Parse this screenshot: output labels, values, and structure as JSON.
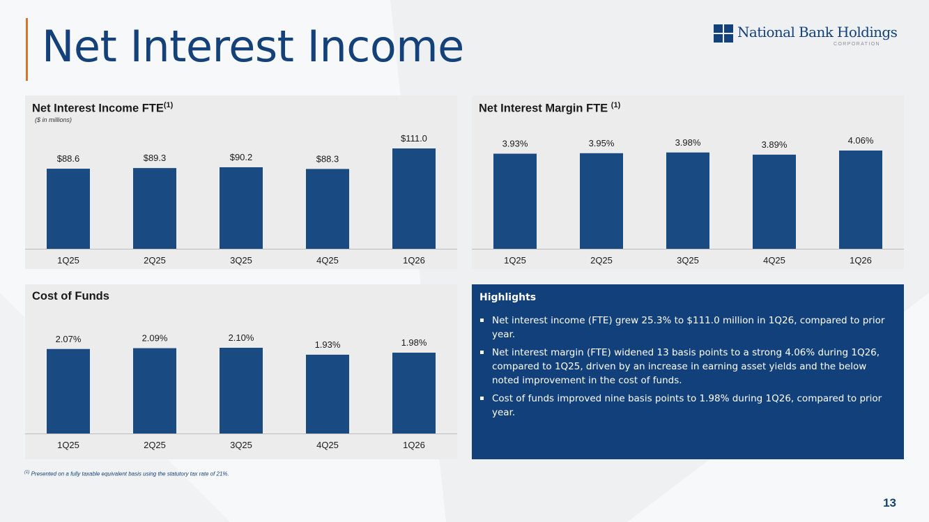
{
  "page": {
    "title": "Net Interest Income",
    "number": "13",
    "footnote_marker": "(1)",
    "footnote": "Presented on a fully taxable equivalent basis using the statutory tax rate of 21%."
  },
  "logo": {
    "name": "National Bank Holdings",
    "sub": "CORPORATION",
    "icon": "four-square-logo-icon",
    "color": "#14417a"
  },
  "colors": {
    "bar": "#1a4a82",
    "accent": "#e0712a",
    "title": "#14417a",
    "highlight_bg": "#12407a"
  },
  "highlights": {
    "title": "Highlights",
    "items": [
      "Net interest income (FTE) grew 25.3% to $111.0 million in 1Q26, compared to prior year.",
      "Net interest margin (FTE) widened 13 basis points to a strong 4.06% during 1Q26, compared to 1Q25, driven by an increase in earning asset yields and the below noted improvement in the cost of funds.",
      "Cost of funds improved nine basis points to 1.98% during 1Q26, compared to prior year."
    ]
  },
  "chart_data": [
    {
      "type": "bar",
      "title": "Net Interest Income FTE",
      "title_marker": "(1)",
      "subtitle": "($ in millions)",
      "categories": [
        "1Q25",
        "2Q25",
        "3Q25",
        "4Q25",
        "1Q26"
      ],
      "values": [
        88.6,
        89.3,
        90.2,
        88.3,
        111.0
      ],
      "data_labels": [
        "$88.6",
        "$89.3",
        "$90.2",
        "$88.3",
        "$111.0"
      ],
      "ylim": [
        0,
        111.0
      ],
      "grid": false
    },
    {
      "type": "bar",
      "title": "Net Interest Margin FTE",
      "title_marker": "(1)",
      "categories": [
        "1Q25",
        "2Q25",
        "3Q25",
        "4Q25",
        "1Q26"
      ],
      "values": [
        3.93,
        3.95,
        3.98,
        3.89,
        4.06
      ],
      "data_labels": [
        "3.93%",
        "3.95%",
        "3.98%",
        "3.89%",
        "4.06%"
      ],
      "ylim": [
        0,
        4.06
      ],
      "grid": false
    },
    {
      "type": "bar",
      "title": "Cost of Funds",
      "categories": [
        "1Q25",
        "2Q25",
        "3Q25",
        "4Q25",
        "1Q26"
      ],
      "values": [
        2.07,
        2.09,
        2.1,
        1.93,
        1.98
      ],
      "data_labels": [
        "2.07%",
        "2.09%",
        "2.10%",
        "1.93%",
        "1.98%"
      ],
      "ylim": [
        0,
        2.1
      ],
      "grid": false
    }
  ]
}
